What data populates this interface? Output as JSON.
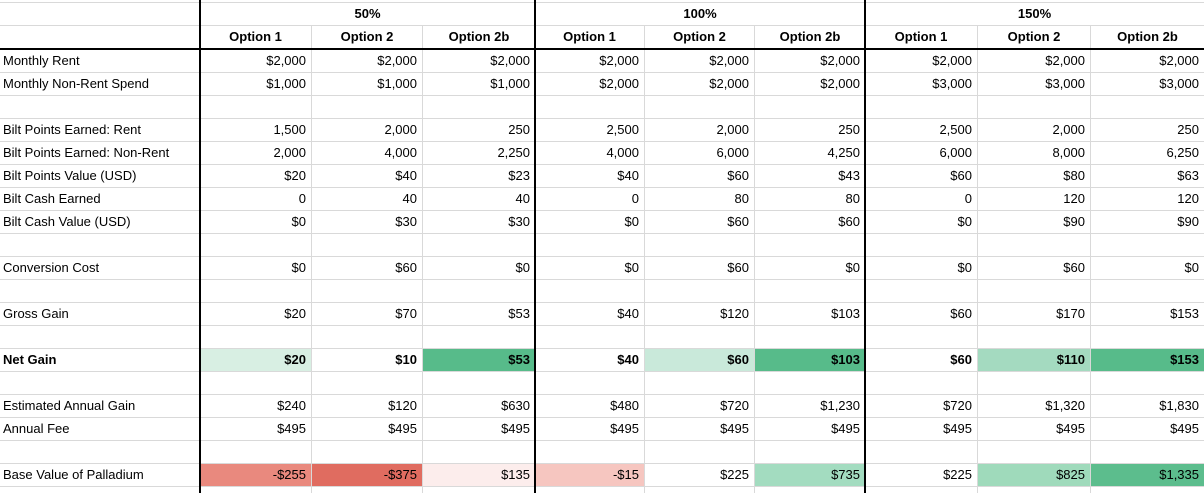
{
  "sheet": {
    "scenario_groups": [
      {
        "label": "50%",
        "options": [
          "Option 1",
          "Option 2",
          "Option 2b"
        ]
      },
      {
        "label": "100%",
        "options": [
          "Option 1",
          "Option 2",
          "Option 2b"
        ]
      },
      {
        "label": "150%",
        "options": [
          "Option 1",
          "Option 2",
          "Option 2b"
        ]
      }
    ],
    "rows": [
      {
        "label": "Monthly Rent",
        "values": [
          "$2,000",
          "$2,000",
          "$2,000",
          "$2,000",
          "$2,000",
          "$2,000",
          "$2,000",
          "$2,000",
          "$2,000"
        ]
      },
      {
        "label": "Monthly Non-Rent Spend",
        "values": [
          "$1,000",
          "$1,000",
          "$1,000",
          "$2,000",
          "$2,000",
          "$2,000",
          "$3,000",
          "$3,000",
          "$3,000"
        ]
      },
      {
        "blank": true
      },
      {
        "label": "Bilt Points Earned: Rent",
        "values": [
          "1,500",
          "2,000",
          "250",
          "2,500",
          "2,000",
          "250",
          "2,500",
          "2,000",
          "250"
        ]
      },
      {
        "label": "Bilt Points Earned: Non-Rent",
        "values": [
          "2,000",
          "4,000",
          "2,250",
          "4,000",
          "6,000",
          "4,250",
          "6,000",
          "8,000",
          "6,250"
        ]
      },
      {
        "label": "Bilt Points Value (USD)",
        "values": [
          "$20",
          "$40",
          "$23",
          "$40",
          "$60",
          "$43",
          "$60",
          "$80",
          "$63"
        ]
      },
      {
        "label": "Bilt Cash Earned",
        "values": [
          "0",
          "40",
          "40",
          "0",
          "80",
          "80",
          "0",
          "120",
          "120"
        ]
      },
      {
        "label": "Bilt Cash Value (USD)",
        "values": [
          "$0",
          "$30",
          "$30",
          "$0",
          "$60",
          "$60",
          "$0",
          "$90",
          "$90"
        ]
      },
      {
        "blank": true
      },
      {
        "label": "Conversion Cost",
        "values": [
          "$0",
          "$60",
          "$0",
          "$0",
          "$60",
          "$0",
          "$0",
          "$60",
          "$0"
        ]
      },
      {
        "blank": true
      },
      {
        "label": "Gross Gain",
        "values": [
          "$20",
          "$70",
          "$53",
          "$40",
          "$120",
          "$103",
          "$60",
          "$170",
          "$153"
        ]
      },
      {
        "blank": true
      },
      {
        "label": "Net Gain",
        "bold": true,
        "values": [
          "$20",
          "$10",
          "$53",
          "$40",
          "$60",
          "$103",
          "$60",
          "$110",
          "$153"
        ],
        "bg": [
          "#d8efe3",
          "",
          "#57bb8a",
          "",
          "#c9e9da",
          "#57bb8a",
          "",
          "#a4dac0",
          "#57bb8a"
        ]
      },
      {
        "blank": true
      },
      {
        "label": "Estimated Annual Gain",
        "values": [
          "$240",
          "$120",
          "$630",
          "$480",
          "$720",
          "$1,230",
          "$720",
          "$1,320",
          "$1,830"
        ]
      },
      {
        "label": "Annual Fee",
        "values": [
          "$495",
          "$495",
          "$495",
          "$495",
          "$495",
          "$495",
          "$495",
          "$495",
          "$495"
        ]
      },
      {
        "blank": true
      },
      {
        "label": "Base Value of Palladium",
        "values": [
          "-$255",
          "-$375",
          "$135",
          "-$15",
          "$225",
          "$735",
          "$225",
          "$825",
          "$1,335"
        ],
        "bg": [
          "#e9897e",
          "#e06c60",
          "#fcedec",
          "#f6c6c0",
          "",
          "#a3dcc0",
          "",
          "#9fdabb",
          "#5cbd8d"
        ]
      },
      {
        "blank": true
      }
    ],
    "colors": {
      "gridline": "#d9d9d9",
      "divider": "#000000",
      "positive_strong": "#57bb8a",
      "negative_strong": "#e06c60",
      "text": "#000000",
      "background": "#ffffff"
    }
  }
}
